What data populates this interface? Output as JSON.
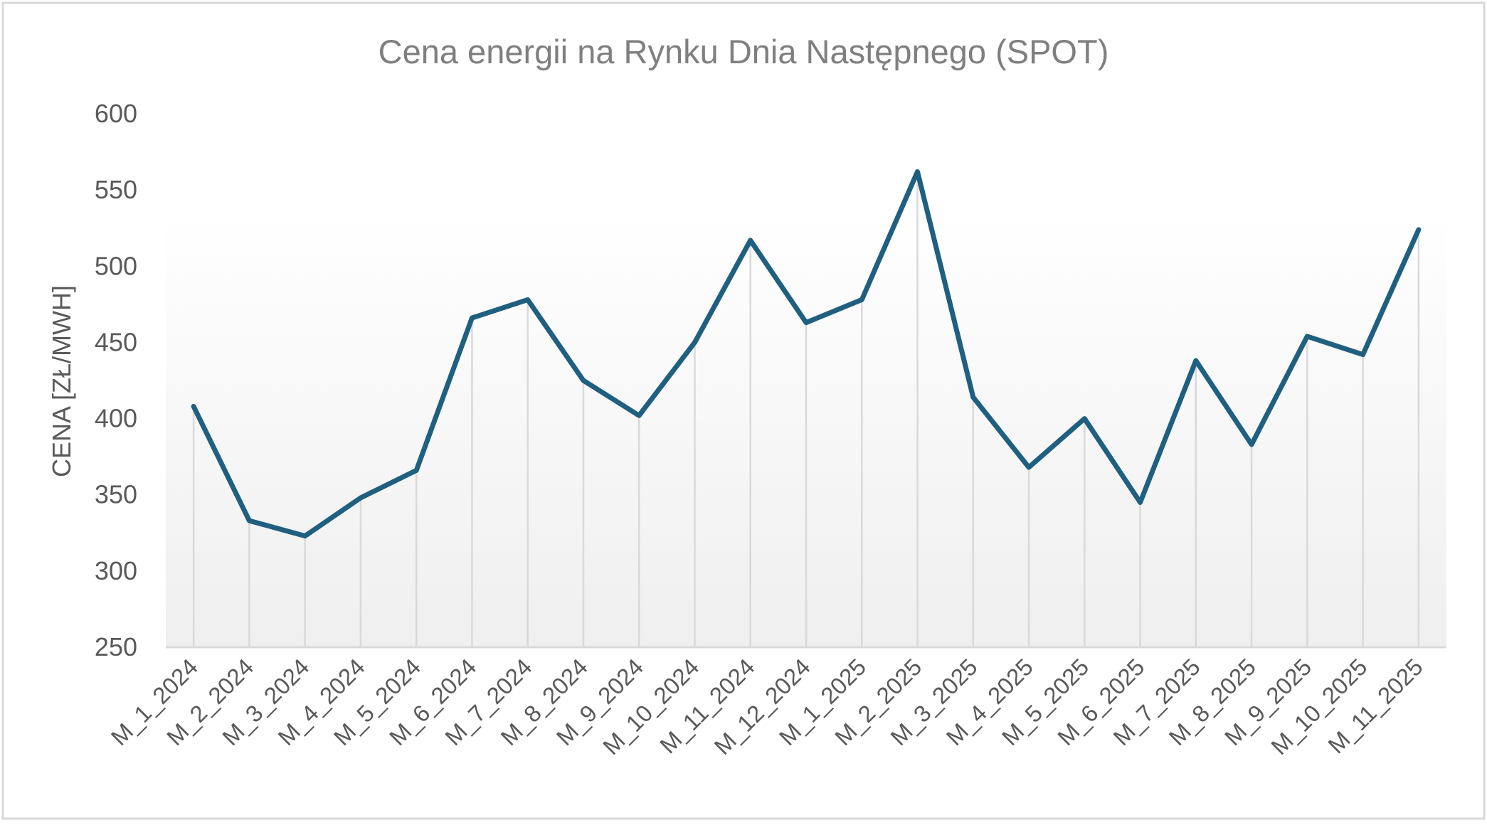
{
  "chart_data": {
    "type": "line",
    "title": "Cena energii na Rynku Dnia Następnego (SPOT)",
    "xlabel": "",
    "ylabel": "CENA [ZŁ/MWH]",
    "ylim": [
      250,
      600
    ],
    "yticks": [
      "250",
      "300",
      "350",
      "400",
      "450",
      "500",
      "550",
      "600"
    ],
    "grid": false,
    "drop_lines": true,
    "legend": "none",
    "categories": [
      "M_1_2024",
      "M_2_2024",
      "M_3_2024",
      "M_4_2024",
      "M_5_2024",
      "M_6_2024",
      "M_7_2024",
      "M_8_2024",
      "M_9_2024",
      "M_10_2024",
      "M_11_2024",
      "M_12_2024",
      "M_1_2025",
      "M_2_2025",
      "M_3_2025",
      "M_4_2025",
      "M_5_2025",
      "M_6_2025",
      "M_7_2025",
      "M_8_2025",
      "M_9_2025",
      "M_10_2025",
      "M_11_2025"
    ],
    "series": [
      {
        "values": [
          408,
          333,
          323,
          348,
          366,
          466,
          478,
          425,
          402,
          450,
          517,
          463,
          478,
          562,
          414,
          368,
          400,
          345,
          438,
          383,
          454,
          442,
          524
        ]
      }
    ],
    "colors": {
      "line": "#1f5f80",
      "drop_line": "#d9d9d9",
      "axis": "#d9d9d9",
      "plot_fill_top": "#ffffff",
      "plot_fill_bottom": "#efefef",
      "frame": "#d9d9d9"
    }
  }
}
